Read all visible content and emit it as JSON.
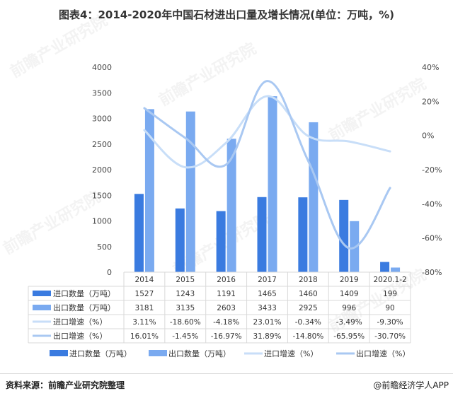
{
  "title": "图表4：2014-2020年中国石材进出口量及增长情况(单位：万吨，%)",
  "footer": {
    "source": "资料来源：前瞻产业研究院整理",
    "brand": "@前瞻经济学人APP"
  },
  "watermark": "前瞻产业研究院",
  "colors": {
    "import_qty": "#3a7be0",
    "export_qty": "#7aaaf0",
    "import_growth": "#c8def8",
    "export_growth": "#a9c8f2",
    "grid": "#d9d9d9"
  },
  "chart_data": {
    "type": "bar",
    "categories": [
      "2014",
      "2015",
      "2016",
      "2017",
      "2018",
      "2019",
      "2020.1-2"
    ],
    "ylim_left": [
      0,
      4000
    ],
    "yticks_left": [
      0,
      500,
      1000,
      1500,
      2000,
      2500,
      3000,
      3500,
      4000
    ],
    "ylim_right": [
      -80,
      40
    ],
    "yticks_right": [
      "40%",
      "20%",
      "0%",
      "-20%",
      "-40%",
      "-60%",
      "-80%"
    ],
    "series": [
      {
        "name": "进口数量（万吨）",
        "kind": "bar",
        "axis": "left",
        "values": [
          1527,
          1243,
          1191,
          1465,
          1460,
          1409,
          199
        ],
        "labels": [
          "1527",
          "1243",
          "1191",
          "1465",
          "1460",
          "1409",
          "199"
        ]
      },
      {
        "name": "出口数量（万吨）",
        "kind": "bar",
        "axis": "left",
        "values": [
          3181,
          3135,
          2603,
          3433,
          2925,
          996,
          90
        ],
        "labels": [
          "3181",
          "3135",
          "2603",
          "3433",
          "2925",
          "996",
          "90"
        ]
      },
      {
        "name": "进口增速（%）",
        "kind": "line",
        "axis": "right",
        "values": [
          3.11,
          -18.6,
          -4.18,
          23.01,
          -0.34,
          -3.49,
          -9.3
        ],
        "labels": [
          "3.11%",
          "-18.60%",
          "-4.18%",
          "23.01%",
          "-0.34%",
          "-3.49%",
          "-9.30%"
        ]
      },
      {
        "name": "出口增速（%）",
        "kind": "line",
        "axis": "right",
        "values": [
          16.01,
          -1.45,
          -16.97,
          31.89,
          -14.8,
          -65.95,
          -30.7
        ],
        "labels": [
          "16.01%",
          "-1.45%",
          "-16.97%",
          "31.89%",
          "-14.80%",
          "-65.95%",
          "-30.70%"
        ]
      }
    ],
    "table_row_labels": [
      "进口数量（万吨）",
      "出口数量（万吨）",
      "进口增速（%）",
      "出口增速（%）"
    ],
    "legend": [
      "进口数量（万吨）",
      "出口数量（万吨）",
      "进口增速（%）",
      "出口增速（%）"
    ],
    "legend_position": "bottom",
    "grid": false
  }
}
